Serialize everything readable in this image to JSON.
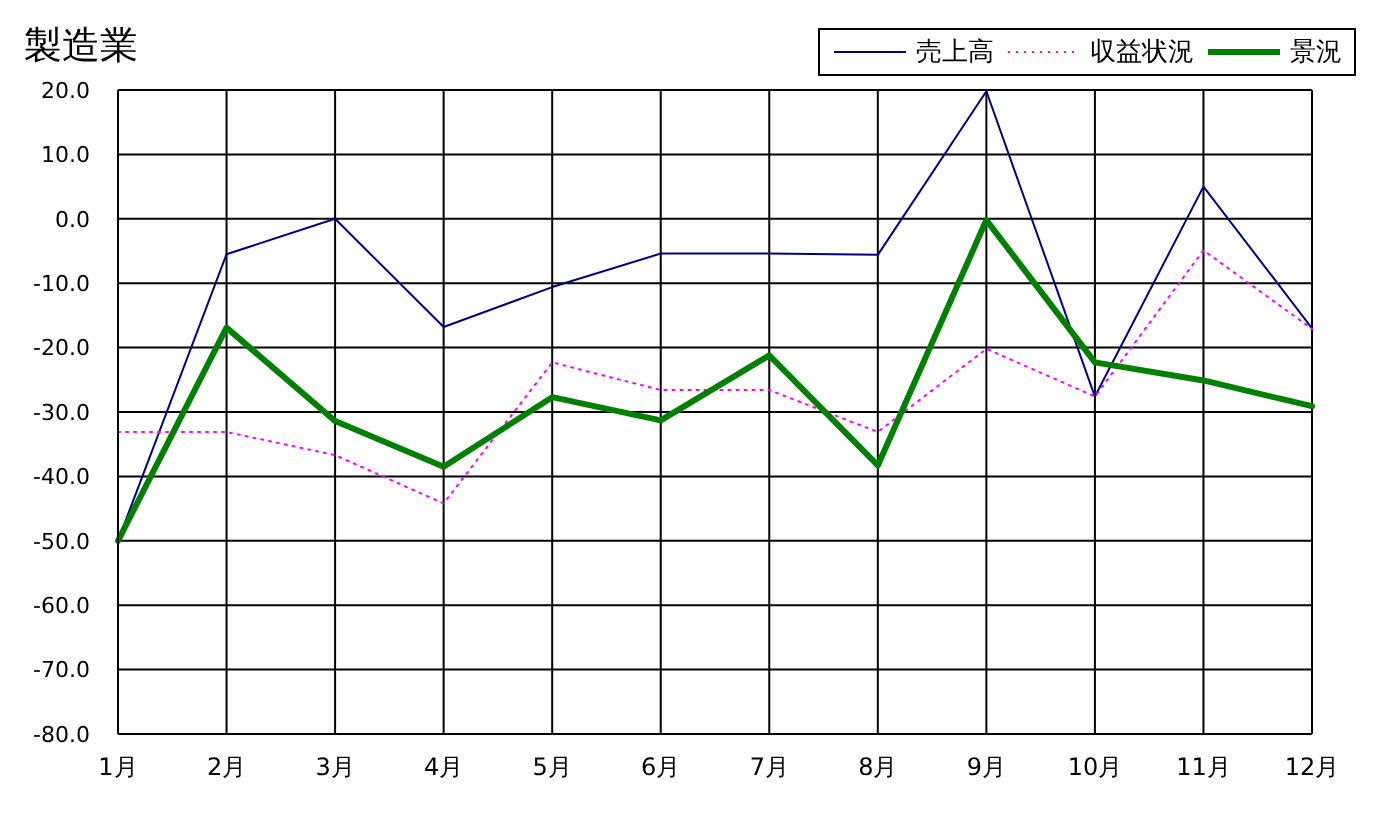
{
  "chart_data": {
    "type": "line",
    "title": "製造業",
    "categories": [
      "1月",
      "2月",
      "3月",
      "4月",
      "5月",
      "6月",
      "7月",
      "8月",
      "9月",
      "10月",
      "11月",
      "12月"
    ],
    "series": [
      {
        "name": "売上高",
        "color": "#000080",
        "values": [
          -50.0,
          -5.5,
          0.0,
          -16.8,
          -10.6,
          -5.4,
          -5.4,
          -5.6,
          19.8,
          -27.6,
          5.0,
          -17.0
        ]
      },
      {
        "name": "収益状況",
        "color": "#ff00ff",
        "line_style": "dotted",
        "values": [
          -33.1,
          -33.1,
          -36.7,
          -44.2,
          -22.3,
          -26.6,
          -26.6,
          -33.1,
          -20.2,
          -27.6,
          -4.9,
          -17.1
        ]
      },
      {
        "name": "景況",
        "color": "#008000",
        "values": [
          -50.0,
          -16.9,
          -31.4,
          -38.5,
          -27.7,
          -31.3,
          -21.2,
          -38.3,
          -0.2,
          -22.3,
          -25.1,
          -29.1
        ]
      }
    ],
    "ylim": [
      -80,
      20
    ],
    "yticks": [
      {
        "value": -80,
        "label": "-80.0"
      },
      {
        "value": -70,
        "label": "-70.0"
      },
      {
        "value": -60,
        "label": "-60.0"
      },
      {
        "value": -50,
        "label": "-50.0"
      },
      {
        "value": -40,
        "label": "-40.0"
      },
      {
        "value": -30,
        "label": "-30.0"
      },
      {
        "value": -20,
        "label": "-20.0"
      },
      {
        "value": -10,
        "label": "-10.0"
      },
      {
        "value": 0,
        "label": "0.0"
      },
      {
        "value": 10,
        "label": "10.0"
      },
      {
        "value": 20,
        "label": "20.0"
      }
    ],
    "grid": true,
    "legend": "top right",
    "marker": "none",
    "line_style": "solid"
  }
}
